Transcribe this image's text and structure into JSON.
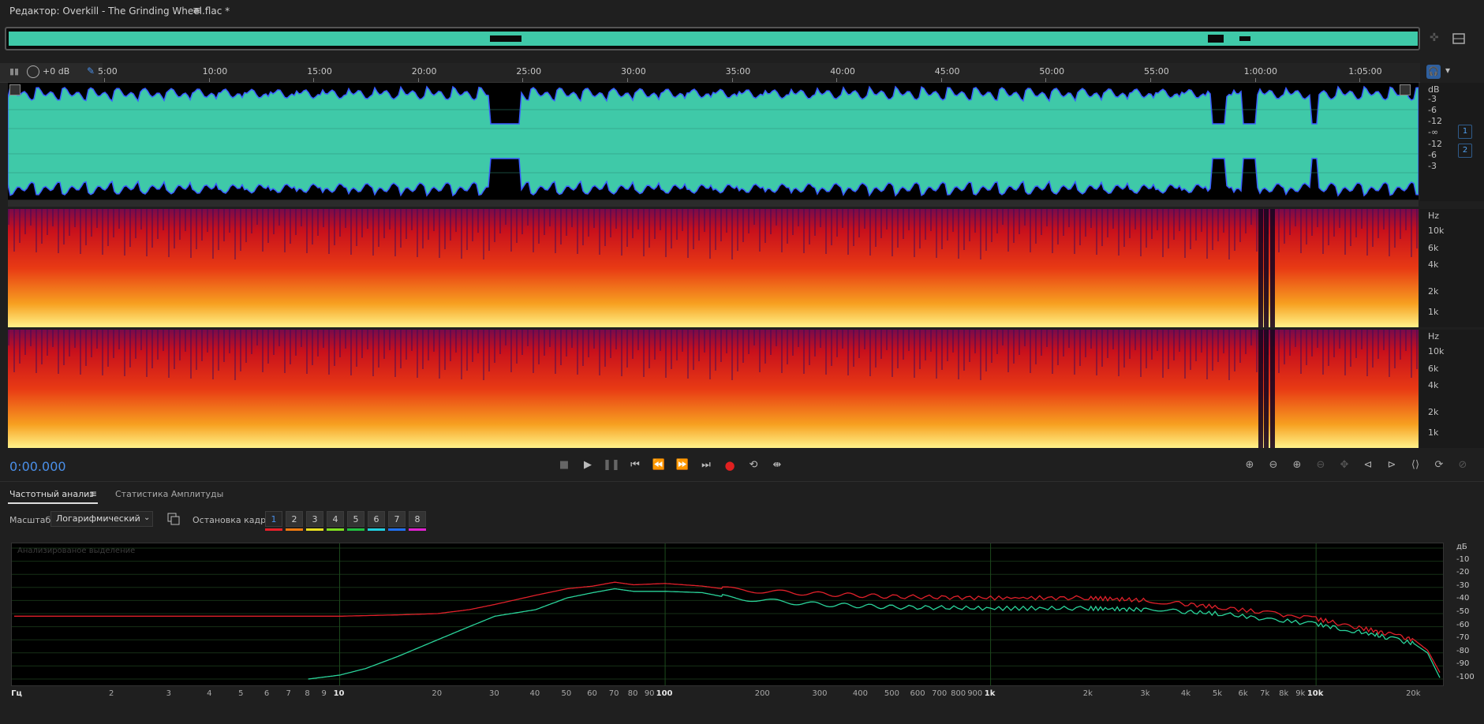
{
  "window": {
    "title": "Редактор: Overkill - The Grinding Wheel.flac *",
    "menu_icon": "hamburger-icon"
  },
  "level": {
    "gain_label": "+0 dB"
  },
  "ruler": {
    "labels": [
      "5:00",
      "10:00",
      "15:00",
      "20:00",
      "25:00",
      "30:00",
      "35:00",
      "40:00",
      "45:00",
      "50:00",
      "55:00",
      "1:00:00",
      "1:05:00"
    ]
  },
  "waveform": {
    "db_labels": [
      "dB",
      "-3",
      "-6",
      "-12",
      "-∞",
      "-12",
      "-6",
      "-3"
    ],
    "channels": [
      "1",
      "2"
    ],
    "colors": {
      "wave": "#3fc9a8",
      "peaks": "#3a5cff",
      "bg": "#000000"
    }
  },
  "spectral": {
    "hz_labels": [
      "Hz",
      "10k",
      "6k",
      "4k",
      "2k",
      "1k"
    ]
  },
  "transport": {
    "time": "0:00.000",
    "buttons": [
      "stop-icon",
      "play-icon",
      "pause-icon",
      "go-to-start-icon",
      "rewind-icon",
      "fast-forward-icon",
      "go-to-end-icon",
      "record-icon",
      "loop-icon",
      "skip-selection-icon"
    ]
  },
  "panel": {
    "tabs": [
      {
        "label": "Частотный анализ",
        "active": true
      },
      {
        "label": "Статистика Амплитуды",
        "active": false
      }
    ],
    "scale_label": "Масштаб:",
    "scale_value": "Логарифмический",
    "freeze_label": "Остановка кадра:",
    "frames": [
      {
        "label": "1",
        "color": "#e8202a"
      },
      {
        "label": "2",
        "color": "#f07a10"
      },
      {
        "label": "3",
        "color": "#e8e020"
      },
      {
        "label": "4",
        "color": "#80e020"
      },
      {
        "label": "5",
        "color": "#20c040"
      },
      {
        "label": "6",
        "color": "#20d0e0"
      },
      {
        "label": "7",
        "color": "#2070f0"
      },
      {
        "label": "8",
        "color": "#e020d0"
      }
    ],
    "plot_caption": "Анализированое выделение",
    "db_axis": [
      "дБ",
      "-10",
      "-20",
      "-30",
      "-40",
      "-50",
      "-60",
      "-70",
      "-80",
      "-90",
      "-100"
    ],
    "freq_axis": [
      {
        "label": "Гц",
        "f": 1,
        "major": true
      },
      {
        "label": "2",
        "f": 2
      },
      {
        "label": "3",
        "f": 3
      },
      {
        "label": "4",
        "f": 4
      },
      {
        "label": "5",
        "f": 5
      },
      {
        "label": "6",
        "f": 6
      },
      {
        "label": "7",
        "f": 7
      },
      {
        "label": "8",
        "f": 8
      },
      {
        "label": "9",
        "f": 9
      },
      {
        "label": "10",
        "f": 10,
        "major": true
      },
      {
        "label": "20",
        "f": 20
      },
      {
        "label": "30",
        "f": 30
      },
      {
        "label": "40",
        "f": 40
      },
      {
        "label": "50",
        "f": 50
      },
      {
        "label": "60",
        "f": 60
      },
      {
        "label": "70",
        "f": 70
      },
      {
        "label": "80",
        "f": 80
      },
      {
        "label": "90",
        "f": 90
      },
      {
        "label": "100",
        "f": 100,
        "major": true
      },
      {
        "label": "200",
        "f": 200
      },
      {
        "label": "300",
        "f": 300
      },
      {
        "label": "400",
        "f": 400
      },
      {
        "label": "500",
        "f": 500
      },
      {
        "label": "600",
        "f": 600
      },
      {
        "label": "700",
        "f": 700
      },
      {
        "label": "800",
        "f": 800
      },
      {
        "label": "900",
        "f": 900
      },
      {
        "label": "1k",
        "f": 1000,
        "major": true
      },
      {
        "label": "2k",
        "f": 2000
      },
      {
        "label": "3k",
        "f": 3000
      },
      {
        "label": "4k",
        "f": 4000
      },
      {
        "label": "5k",
        "f": 5000
      },
      {
        "label": "6k",
        "f": 6000
      },
      {
        "label": "7k",
        "f": 7000
      },
      {
        "label": "8k",
        "f": 8000
      },
      {
        "label": "9k",
        "f": 9000
      },
      {
        "label": "10k",
        "f": 10000,
        "major": true
      },
      {
        "label": "20k",
        "f": 20000
      }
    ]
  },
  "chart_data": {
    "type": "line",
    "xlabel": "Гц",
    "ylabel": "дБ",
    "x_scale": "log",
    "xlim": [
      1,
      24000
    ],
    "ylim": [
      -100,
      0
    ],
    "grid": true,
    "series": [
      {
        "color": "#e0202a",
        "x": [
          1,
          5,
          10,
          15,
          20,
          25,
          30,
          40,
          50,
          60,
          70,
          80,
          100,
          130,
          150,
          200,
          300,
          500,
          1000,
          2000,
          3000,
          5000,
          10000,
          15000,
          20000,
          22000,
          24000
        ],
        "y": [
          -52,
          -52,
          -52,
          -51,
          -50,
          -47,
          -43,
          -36,
          -31,
          -29,
          -26,
          -28,
          -27,
          -29,
          -31,
          -33,
          -35,
          -37,
          -38,
          -38,
          -40,
          -45,
          -54,
          -63,
          -70,
          -78,
          -95
        ]
      },
      {
        "color": "#2ad39a",
        "x": [
          8,
          10,
          12,
          15,
          20,
          25,
          30,
          40,
          50,
          60,
          70,
          80,
          100,
          130,
          150,
          200,
          300,
          500,
          1000,
          2000,
          3000,
          5000,
          10000,
          15000,
          20000,
          22000,
          24000
        ],
        "y": [
          -100,
          -97,
          -92,
          -83,
          -70,
          -60,
          -52,
          -47,
          -38,
          -34,
          -31,
          -33,
          -33,
          -34,
          -37,
          -40,
          -43,
          -45,
          -46,
          -46,
          -47,
          -50,
          -58,
          -66,
          -73,
          -80,
          -99
        ]
      }
    ]
  }
}
